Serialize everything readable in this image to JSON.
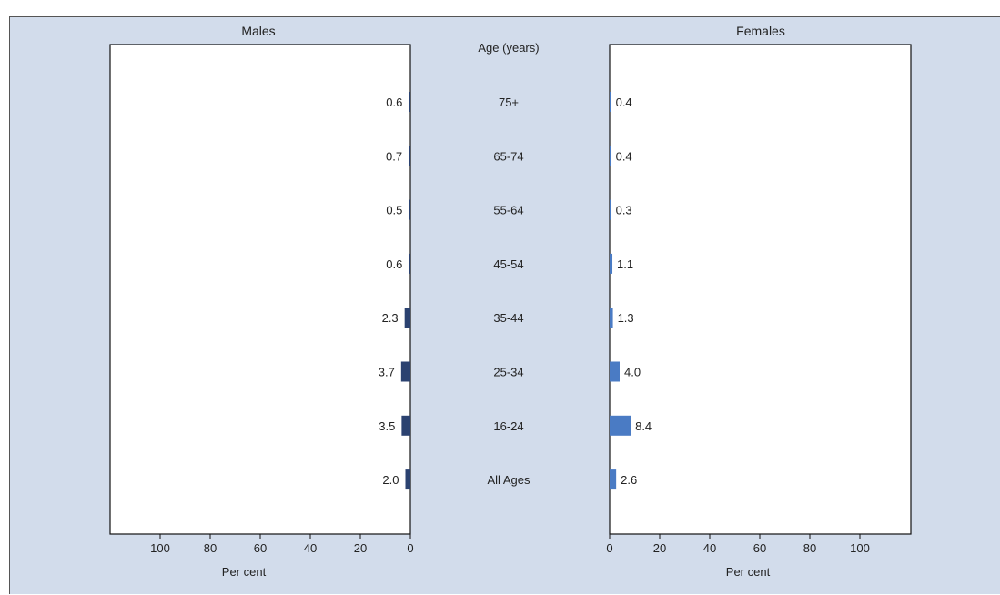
{
  "chart_data": {
    "type": "bar",
    "orientation": "horizontal-butterfly",
    "center_header": "Age (years)",
    "categories": [
      "75+",
      "65-74",
      "55-64",
      "45-54",
      "35-44",
      "25-34",
      "16-24",
      "All Ages"
    ],
    "series": [
      {
        "name": "Males",
        "values": [
          0.6,
          0.7,
          0.5,
          0.6,
          2.3,
          3.7,
          3.5,
          2.0
        ],
        "labels": [
          "0.6",
          "0.7",
          "0.5",
          "0.6",
          "2.3",
          "3.7",
          "3.5",
          "2.0"
        ],
        "color": "#2b4270"
      },
      {
        "name": "Females",
        "values": [
          0.4,
          0.4,
          0.3,
          1.1,
          1.3,
          4.0,
          8.4,
          2.6
        ],
        "labels": [
          "0.4",
          "0.4",
          "0.3",
          "1.1",
          "1.3",
          "4.0",
          "8.4",
          "2.6"
        ],
        "color": "#4a7bc4"
      }
    ],
    "male_ticks": [
      "100",
      "80",
      "60",
      "40",
      "20",
      "0"
    ],
    "female_ticks": [
      "0",
      "20",
      "40",
      "60",
      "80",
      "100"
    ],
    "xlabel": "Per cent",
    "xlim": [
      0,
      120
    ],
    "grid": false,
    "background": "#d2dceb"
  }
}
